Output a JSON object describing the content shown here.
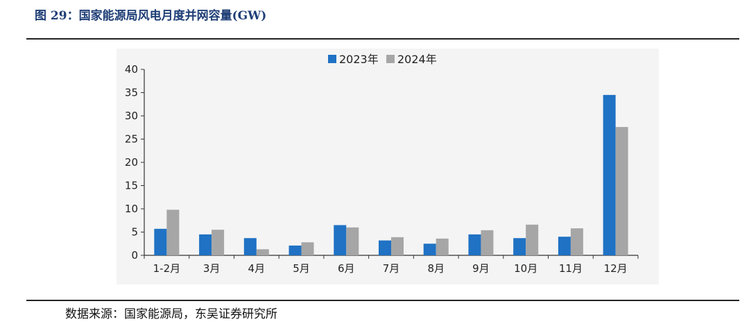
{
  "figure": {
    "title": "图 29：国家能源局风电月度并网容量(GW)",
    "source": "数据来源：国家能源局，东吴证券研究所"
  },
  "colors": {
    "title": "#1f3e76",
    "series_2023": "#1f72c4",
    "series_2024": "#a6a6a6",
    "axis": "#333333"
  },
  "chart_data": {
    "type": "bar",
    "categories": [
      "1-2月",
      "3月",
      "4月",
      "5月",
      "6月",
      "7月",
      "8月",
      "9月",
      "10月",
      "11月",
      "12月"
    ],
    "series": [
      {
        "name": "2023年",
        "values": [
          5.7,
          4.5,
          3.7,
          2.1,
          6.5,
          3.2,
          2.5,
          4.5,
          3.7,
          4.0,
          34.5
        ]
      },
      {
        "name": "2024年",
        "values": [
          9.8,
          5.5,
          1.3,
          2.8,
          6.0,
          3.9,
          3.6,
          5.4,
          6.6,
          5.8,
          27.6
        ]
      }
    ],
    "ylim": [
      0,
      40
    ],
    "yticks": [
      0,
      5,
      10,
      15,
      20,
      25,
      30,
      35,
      40
    ],
    "legend_position": "top-center",
    "grid": false
  }
}
